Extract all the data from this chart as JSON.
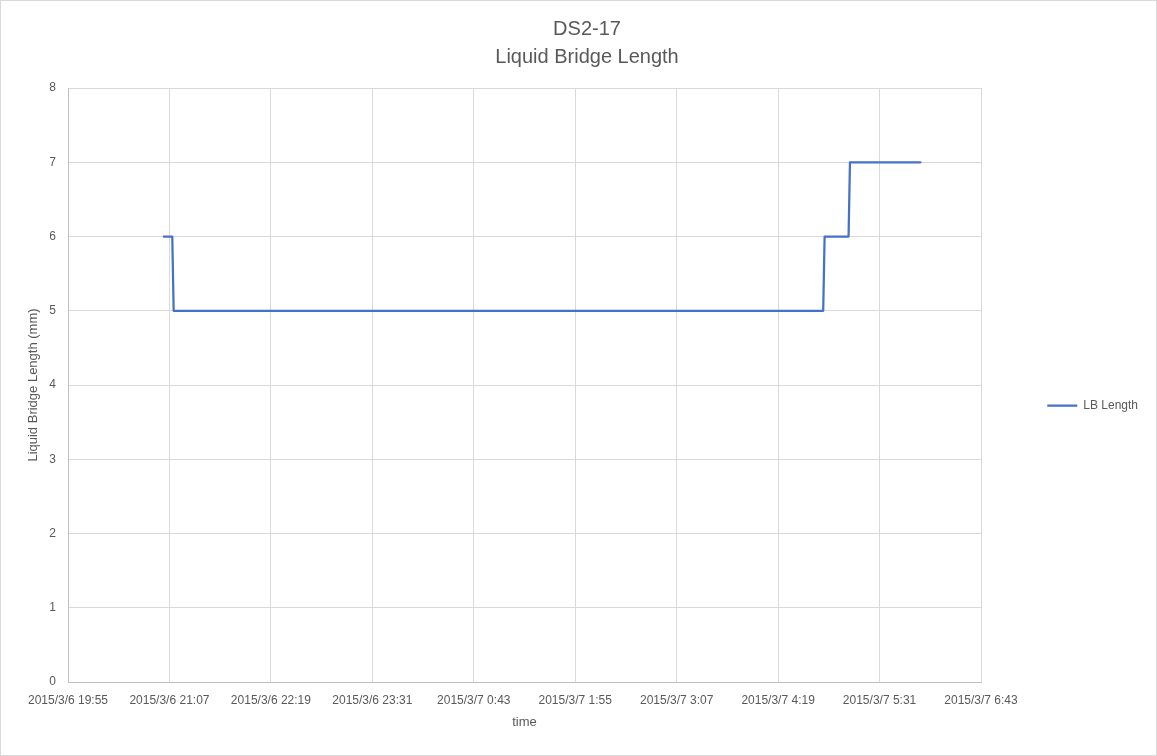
{
  "chart_data": {
    "type": "line",
    "title": "DS2-17",
    "subtitle": "Liquid Bridge Length",
    "xlabel": "time",
    "ylabel": "Liquid Bridge Length (mm)",
    "series": [
      {
        "name": "LB Length",
        "color": "#4472c4",
        "x": [
          "2015-03-06T21:03",
          "2015-03-06T21:09",
          "2015-03-06T21:10",
          "2015-03-07T04:51",
          "2015-03-07T04:52",
          "2015-03-07T05:09",
          "2015-03-07T05:10",
          "2015-03-07T06:00"
        ],
        "values": [
          6,
          6,
          5,
          5,
          6,
          6,
          7,
          7
        ]
      }
    ],
    "xlim": [
      "2015-03-06T19:55",
      "2015-03-07T06:43"
    ],
    "xticks": [
      {
        "value": "2015-03-06T19:55",
        "label": "2015/3/6 19:55"
      },
      {
        "value": "2015-03-06T21:07",
        "label": "2015/3/6 21:07"
      },
      {
        "value": "2015-03-06T22:19",
        "label": "2015/3/6 22:19"
      },
      {
        "value": "2015-03-06T23:31",
        "label": "2015/3/6 23:31"
      },
      {
        "value": "2015-03-07T00:43",
        "label": "2015/3/7 0:43"
      },
      {
        "value": "2015-03-07T01:55",
        "label": "2015/3/7 1:55"
      },
      {
        "value": "2015-03-07T03:07",
        "label": "2015/3/7 3:07"
      },
      {
        "value": "2015-03-07T04:19",
        "label": "2015/3/7 4:19"
      },
      {
        "value": "2015-03-07T05:31",
        "label": "2015/3/7 5:31"
      },
      {
        "value": "2015-03-07T06:43",
        "label": "2015/3/7 6:43"
      }
    ],
    "ylim": [
      0,
      8
    ],
    "yticks": [
      0,
      1,
      2,
      3,
      4,
      5,
      6,
      7,
      8
    ],
    "grid": true,
    "legend": "right",
    "marker": "none",
    "line_style": "solid"
  }
}
